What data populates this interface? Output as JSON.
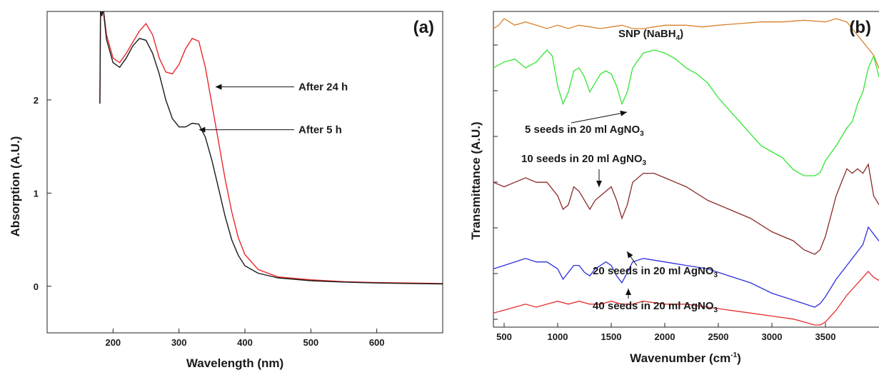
{
  "chart_data": [
    {
      "type": "line",
      "panel_label": "(a)",
      "xlabel": "Wavelength (nm)",
      "ylabel": "Absorption (A.U.)",
      "xlim": [
        100,
        700
      ],
      "ylim": [
        -0.5,
        2.95
      ],
      "x_ticks": [
        200,
        300,
        400,
        500,
        600
      ],
      "y_ticks": [
        0,
        1,
        2
      ],
      "grid": false,
      "series": [
        {
          "name": "After 24 h",
          "color": "#e8282b",
          "x": [
            180,
            181,
            183,
            185,
            190,
            200,
            210,
            220,
            230,
            240,
            250,
            260,
            270,
            280,
            290,
            300,
            310,
            320,
            330,
            340,
            350,
            360,
            370,
            380,
            390,
            400,
            420,
            450,
            500,
            550,
            600,
            650,
            700
          ],
          "y": [
            1.96,
            3.0,
            2.9,
            3.0,
            2.7,
            2.45,
            2.4,
            2.5,
            2.62,
            2.74,
            2.82,
            2.7,
            2.45,
            2.3,
            2.28,
            2.38,
            2.55,
            2.66,
            2.63,
            2.35,
            1.95,
            1.55,
            1.15,
            0.8,
            0.52,
            0.34,
            0.18,
            0.1,
            0.07,
            0.05,
            0.04,
            0.035,
            0.03
          ]
        },
        {
          "name": "After 5 h",
          "color": "#1a1a1a",
          "x": [
            180,
            181,
            183,
            185,
            190,
            200,
            210,
            220,
            230,
            240,
            250,
            260,
            270,
            280,
            290,
            300,
            310,
            320,
            330,
            340,
            350,
            360,
            370,
            380,
            390,
            400,
            420,
            450,
            500,
            550,
            600,
            650,
            700
          ],
          "y": [
            1.96,
            3.0,
            2.9,
            2.98,
            2.65,
            2.4,
            2.35,
            2.45,
            2.58,
            2.66,
            2.64,
            2.5,
            2.28,
            2.0,
            1.8,
            1.71,
            1.71,
            1.75,
            1.74,
            1.6,
            1.35,
            1.05,
            0.75,
            0.5,
            0.33,
            0.22,
            0.14,
            0.09,
            0.06,
            0.045,
            0.035,
            0.03,
            0.025
          ]
        }
      ],
      "annotations": [
        {
          "text": "After 24 h",
          "x": 355,
          "y": 2.14
        },
        {
          "text": "After 5 h",
          "x": 330,
          "y": 1.68
        }
      ]
    },
    {
      "type": "line",
      "panel_label": "(b)",
      "xlabel": "Wavenumber (cm-1)",
      "xlabel_main": "Wavenumber (cm",
      "xlabel_sup": "-1",
      "xlabel_tail": ")",
      "ylabel": "Transmittance (A.U.)",
      "xlim": [
        400,
        4000
      ],
      "ylim": [
        0,
        1
      ],
      "x_ticks": [
        500,
        1000,
        1500,
        2000,
        2500,
        3000,
        3500
      ],
      "grid": false,
      "series": [
        {
          "name": "SNP (NaBH4)",
          "color": "#d9822b",
          "x": [
            400,
            450,
            500,
            600,
            700,
            800,
            900,
            1000,
            1100,
            1200,
            1300,
            1400,
            1500,
            1600,
            1700,
            1800,
            1900,
            2000,
            2200,
            2350,
            2500,
            2700,
            2900,
            3100,
            3300,
            3500,
            3600,
            3700,
            3750,
            3800,
            3850,
            3900,
            3950,
            4000
          ],
          "y": [
            0.92,
            0.93,
            0.95,
            0.93,
            0.94,
            0.93,
            0.92,
            0.93,
            0.92,
            0.93,
            0.925,
            0.92,
            0.925,
            0.93,
            0.92,
            0.92,
            0.925,
            0.93,
            0.93,
            0.925,
            0.93,
            0.935,
            0.94,
            0.94,
            0.945,
            0.94,
            0.95,
            0.94,
            0.92,
            0.9,
            0.88,
            0.86,
            0.84,
            0.8
          ]
        },
        {
          "name": "5 seeds in 20 ml AgNO3",
          "color": "#33e633",
          "x": [
            400,
            500,
            600,
            700,
            800,
            900,
            950,
            1000,
            1050,
            1100,
            1150,
            1200,
            1250,
            1300,
            1350,
            1400,
            1450,
            1500,
            1550,
            1600,
            1650,
            1700,
            1800,
            1900,
            2000,
            2100,
            2200,
            2300,
            2400,
            2500,
            2600,
            2700,
            2800,
            2900,
            3000,
            3100,
            3200,
            3300,
            3400,
            3450,
            3500,
            3600,
            3700,
            3750,
            3800,
            3850,
            3900,
            3950,
            4000
          ],
          "y": [
            0.78,
            0.8,
            0.81,
            0.78,
            0.8,
            0.84,
            0.82,
            0.72,
            0.66,
            0.7,
            0.77,
            0.78,
            0.75,
            0.7,
            0.73,
            0.76,
            0.77,
            0.76,
            0.72,
            0.66,
            0.7,
            0.78,
            0.83,
            0.84,
            0.83,
            0.81,
            0.78,
            0.76,
            0.73,
            0.68,
            0.64,
            0.6,
            0.56,
            0.52,
            0.5,
            0.48,
            0.44,
            0.42,
            0.42,
            0.43,
            0.47,
            0.52,
            0.58,
            0.6,
            0.66,
            0.7,
            0.78,
            0.82,
            0.75
          ]
        },
        {
          "name": "10 seeds in 20 ml AgNO3",
          "color": "#8b2a2a",
          "x": [
            400,
            500,
            600,
            700,
            800,
            900,
            1000,
            1050,
            1100,
            1150,
            1200,
            1250,
            1300,
            1350,
            1400,
            1450,
            1500,
            1550,
            1600,
            1650,
            1700,
            1800,
            1900,
            2000,
            2200,
            2400,
            2600,
            2800,
            3000,
            3200,
            3300,
            3400,
            3450,
            3500,
            3600,
            3700,
            3750,
            3800,
            3850,
            3900,
            3950,
            4000
          ],
          "y": [
            0.53,
            0.52,
            0.53,
            0.54,
            0.53,
            0.53,
            0.5,
            0.47,
            0.48,
            0.52,
            0.51,
            0.49,
            0.47,
            0.49,
            0.5,
            0.51,
            0.52,
            0.49,
            0.45,
            0.48,
            0.53,
            0.55,
            0.55,
            0.54,
            0.52,
            0.49,
            0.47,
            0.45,
            0.42,
            0.4,
            0.38,
            0.37,
            0.38,
            0.41,
            0.5,
            0.56,
            0.55,
            0.56,
            0.55,
            0.57,
            0.5,
            0.48
          ]
        },
        {
          "name": "20 seeds in 20 ml AgNO3",
          "color": "#2f2fe0",
          "x": [
            400,
            500,
            600,
            700,
            800,
            900,
            1000,
            1050,
            1100,
            1150,
            1200,
            1250,
            1300,
            1350,
            1400,
            1450,
            1500,
            1550,
            1600,
            1650,
            1700,
            1800,
            2000,
            2200,
            2400,
            2600,
            2800,
            3000,
            3200,
            3300,
            3400,
            3450,
            3500,
            3600,
            3700,
            3750,
            3800,
            3850,
            3900,
            3950,
            4000
          ],
          "y": [
            0.3,
            0.31,
            0.32,
            0.33,
            0.32,
            0.32,
            0.3,
            0.27,
            0.29,
            0.31,
            0.31,
            0.29,
            0.28,
            0.3,
            0.31,
            0.32,
            0.31,
            0.28,
            0.26,
            0.29,
            0.32,
            0.33,
            0.32,
            0.31,
            0.3,
            0.28,
            0.26,
            0.23,
            0.21,
            0.2,
            0.19,
            0.2,
            0.22,
            0.27,
            0.31,
            0.33,
            0.35,
            0.37,
            0.42,
            0.4,
            0.38
          ]
        },
        {
          "name": "40 seeds in 20 ml AgNO3",
          "color": "#e62e2e",
          "x": [
            400,
            500,
            600,
            700,
            800,
            900,
            1000,
            1100,
            1200,
            1300,
            1400,
            1500,
            1600,
            1700,
            1800,
            2000,
            2200,
            2400,
            2600,
            2800,
            3000,
            3200,
            3300,
            3400,
            3450,
            3500,
            3600,
            3700,
            3750,
            3800,
            3850,
            3900,
            3950,
            4000
          ],
          "y": [
            0.14,
            0.15,
            0.16,
            0.17,
            0.16,
            0.17,
            0.18,
            0.17,
            0.18,
            0.17,
            0.17,
            0.18,
            0.17,
            0.17,
            0.18,
            0.17,
            0.17,
            0.16,
            0.15,
            0.14,
            0.13,
            0.12,
            0.11,
            0.1,
            0.1,
            0.11,
            0.15,
            0.2,
            0.22,
            0.24,
            0.26,
            0.28,
            0.26,
            0.25
          ]
        }
      ],
      "labels": [
        {
          "main": "SNP (NaBH",
          "sub": "4",
          "tail": ")",
          "series": 0
        },
        {
          "main": "5 seeds in 20 ml AgNO",
          "sub": "3",
          "tail": "",
          "series": 1
        },
        {
          "main": "10 seeds in 20 ml AgNO",
          "sub": "3",
          "tail": "",
          "series": 2
        },
        {
          "main": "20 seeds in 20 ml AgNO",
          "sub": "3",
          "tail": "",
          "series": 3
        },
        {
          "main": "40 seeds in 20 ml AgNO",
          "sub": "3",
          "tail": "",
          "series": 4
        }
      ]
    }
  ]
}
